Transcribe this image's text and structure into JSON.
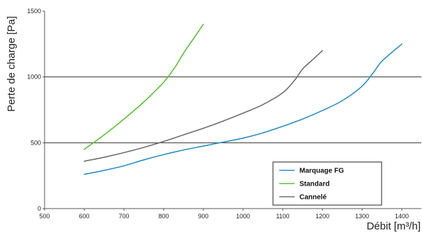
{
  "chart_data": {
    "type": "line",
    "xlabel": "Débit [m³/h]",
    "ylabel": "Perte de charge [Pa]",
    "xlim": [
      500,
      1400
    ],
    "ylim": [
      0,
      1500
    ],
    "xticks": [
      "500",
      "600",
      "700",
      "800",
      "900",
      "1000",
      "1100",
      "1200",
      "1300",
      "1400"
    ],
    "yticks": [
      "0",
      "500",
      "1000",
      "1500"
    ],
    "grid": "horizontal lines at 500 and 1000",
    "legend_position": "bottom-right",
    "series": [
      {
        "name": "Marquage FG",
        "color": "#2a8fc4",
        "x": [
          600,
          650,
          700,
          750,
          800,
          850,
          900,
          950,
          1000,
          1050,
          1100,
          1150,
          1200,
          1250,
          1300,
          1330,
          1350,
          1400
        ],
        "y": [
          260,
          290,
          325,
          370,
          410,
          445,
          475,
          505,
          535,
          575,
          625,
          680,
          745,
          820,
          930,
          1040,
          1120,
          1250
        ]
      },
      {
        "name": "Standard",
        "color": "#5cbf3a",
        "x": [
          600,
          650,
          700,
          750,
          800,
          830,
          850,
          875,
          900
        ],
        "y": [
          450,
          560,
          680,
          810,
          960,
          1080,
          1180,
          1290,
          1400
        ]
      },
      {
        "name": "Cannelé",
        "color": "#6e6e6e",
        "x": [
          600,
          650,
          700,
          750,
          800,
          850,
          900,
          950,
          1000,
          1050,
          1100,
          1130,
          1150,
          1175,
          1200
        ],
        "y": [
          360,
          390,
          425,
          465,
          510,
          560,
          610,
          665,
          725,
          790,
          880,
          975,
          1060,
          1130,
          1200
        ]
      }
    ]
  }
}
